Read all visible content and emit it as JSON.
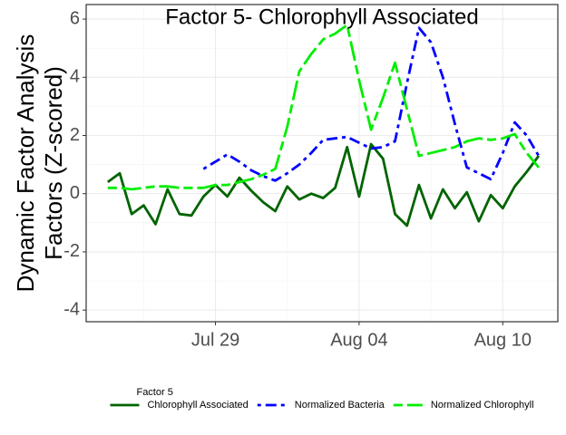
{
  "chart_data": {
    "type": "line",
    "title": "Factor 5- Chlorophyll Associated",
    "y_label": [
      "Dynamic Factor Analysis",
      "Factors (Z-scored)"
    ],
    "legend_title": "Factor 5",
    "legend_position": "bottom",
    "grid": true,
    "x": [
      24.5,
      25,
      25.5,
      26,
      26.5,
      27,
      27.5,
      28,
      28.5,
      29,
      29.5,
      30,
      30.5,
      31,
      31.5,
      32,
      32.5,
      33,
      33.5,
      34,
      34.5,
      35,
      35.5,
      36,
      36.5,
      37,
      37.5,
      38,
      38.5,
      39,
      39.5,
      40,
      40.5,
      41,
      41.5,
      42,
      42.5
    ],
    "xlim": [
      23.6,
      43.3
    ],
    "xticks": [
      {
        "value": 29,
        "label": "Jul 29"
      },
      {
        "value": 35,
        "label": "Aug 04"
      },
      {
        "value": 41,
        "label": "Aug 10"
      }
    ],
    "ylim": [
      -4.4,
      6.5
    ],
    "yticks": [
      -4,
      -2,
      0,
      2,
      4,
      6
    ],
    "series": [
      {
        "name": "Chlorophyll Associated",
        "color": "#006400",
        "linetype": "solid",
        "values": [
          0.4,
          0.7,
          -0.7,
          -0.4,
          -1.05,
          0.15,
          -0.7,
          -0.75,
          -0.1,
          0.3,
          -0.1,
          0.55,
          0.1,
          -0.3,
          -0.6,
          0.25,
          -0.2,
          0.0,
          -0.15,
          0.2,
          1.6,
          -0.1,
          1.7,
          1.2,
          -0.7,
          -1.1,
          0.3,
          -0.85,
          0.15,
          -0.5,
          0.05,
          -0.95,
          -0.05,
          -0.5,
          0.25,
          0.75,
          1.3
        ]
      },
      {
        "name": "Normalized Bacteria",
        "color": "#0000ff",
        "linetype": "dotdash",
        "values": [
          null,
          null,
          null,
          null,
          null,
          null,
          null,
          null,
          0.85,
          1.1,
          1.35,
          1.1,
          0.8,
          0.6,
          0.45,
          0.7,
          1.0,
          1.4,
          1.85,
          1.9,
          1.95,
          1.75,
          1.55,
          1.6,
          1.8,
          3.8,
          5.7,
          5.2,
          4.0,
          2.4,
          0.9,
          0.7,
          0.5,
          1.4,
          2.45,
          2.0,
          1.3
        ]
      },
      {
        "name": "Normalized Chlorophyll",
        "color": "#00ee00",
        "linetype": "twodash",
        "values": [
          0.2,
          0.2,
          0.15,
          0.2,
          0.25,
          0.25,
          0.2,
          0.2,
          0.2,
          0.3,
          0.3,
          0.4,
          0.5,
          0.65,
          0.85,
          2.3,
          4.2,
          4.8,
          5.3,
          5.5,
          5.8,
          3.9,
          2.2,
          3.3,
          4.5,
          2.9,
          1.3,
          1.4,
          1.5,
          1.6,
          1.8,
          1.9,
          1.85,
          1.9,
          2.05,
          1.4,
          0.9
        ]
      }
    ]
  }
}
